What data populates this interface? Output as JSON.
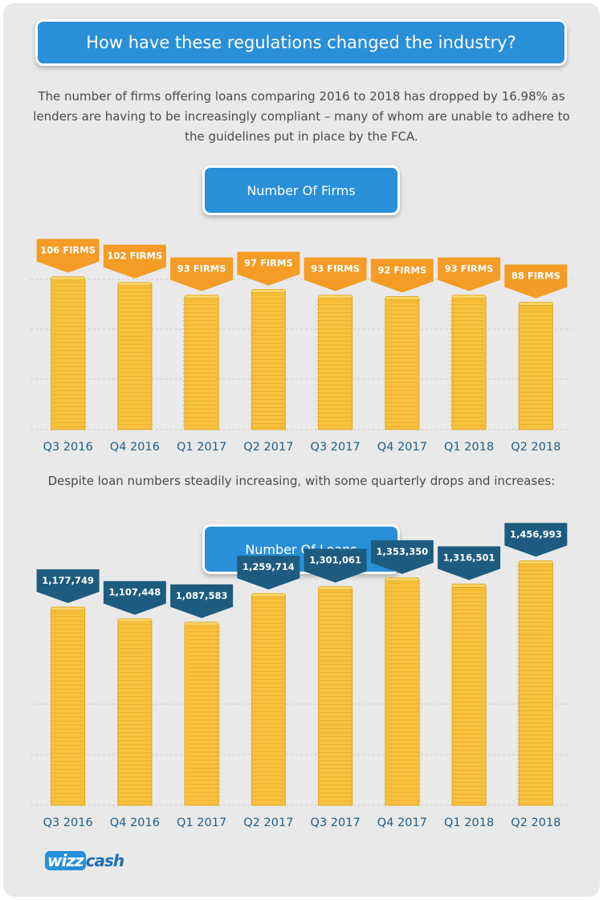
{
  "header": {
    "title": "How have these regulations changed the industry?",
    "intro": "The number of firms offering loans comparing 2016 to 2018 has dropped by 16.98% as lenders are having to be increasingly compliant – many of whom are unable to adhere to the guidelines put in place by the FCA.",
    "mid_text": "Despite loan numbers steadily increasing, with some quarterly drops and increases:"
  },
  "logo": {
    "part1": "wizz",
    "part2": "cash"
  },
  "colors": {
    "coin": "#f7c23e",
    "coin_edge": "#e3a21d",
    "coin_stripe": "#f0b02c",
    "firms_tag": "#f49c26",
    "loans_tag": "#1d5c7e",
    "tick": "#1f5f86",
    "pill": "#2a8fd9"
  },
  "chart_data": [
    {
      "type": "bar",
      "title": "Number Of Firms",
      "categories": [
        "Q3 2016",
        "Q4 2016",
        "Q1 2017",
        "Q2 2017",
        "Q3 2017",
        "Q4 2017",
        "Q1 2018",
        "Q2 2018"
      ],
      "values": [
        106,
        102,
        93,
        97,
        93,
        92,
        93,
        88
      ],
      "labels": [
        "106 FIRMS",
        "102 FIRMS",
        "93 FIRMS",
        "97 FIRMS",
        "93 FIRMS",
        "92 FIRMS",
        "93 FIRMS",
        "88 FIRMS"
      ],
      "ylim": [
        0,
        116
      ],
      "grid": true
    },
    {
      "type": "bar",
      "title": "Number Of Loans",
      "categories": [
        "Q3 2016",
        "Q4 2016",
        "Q1 2017",
        "Q2 2017",
        "Q3 2017",
        "Q4 2017",
        "Q1 2018",
        "Q2 2018"
      ],
      "values": [
        1177749,
        1107448,
        1087583,
        1259714,
        1301061,
        1353350,
        1316501,
        1456993
      ],
      "labels": [
        "1,177,749",
        "1,107,448",
        "1,087,583",
        "1,259,714",
        "1,301,061",
        "1,353,350",
        "1,316,501",
        "1,456,993"
      ],
      "ylim": [
        0,
        1850000
      ],
      "grid": true
    }
  ]
}
